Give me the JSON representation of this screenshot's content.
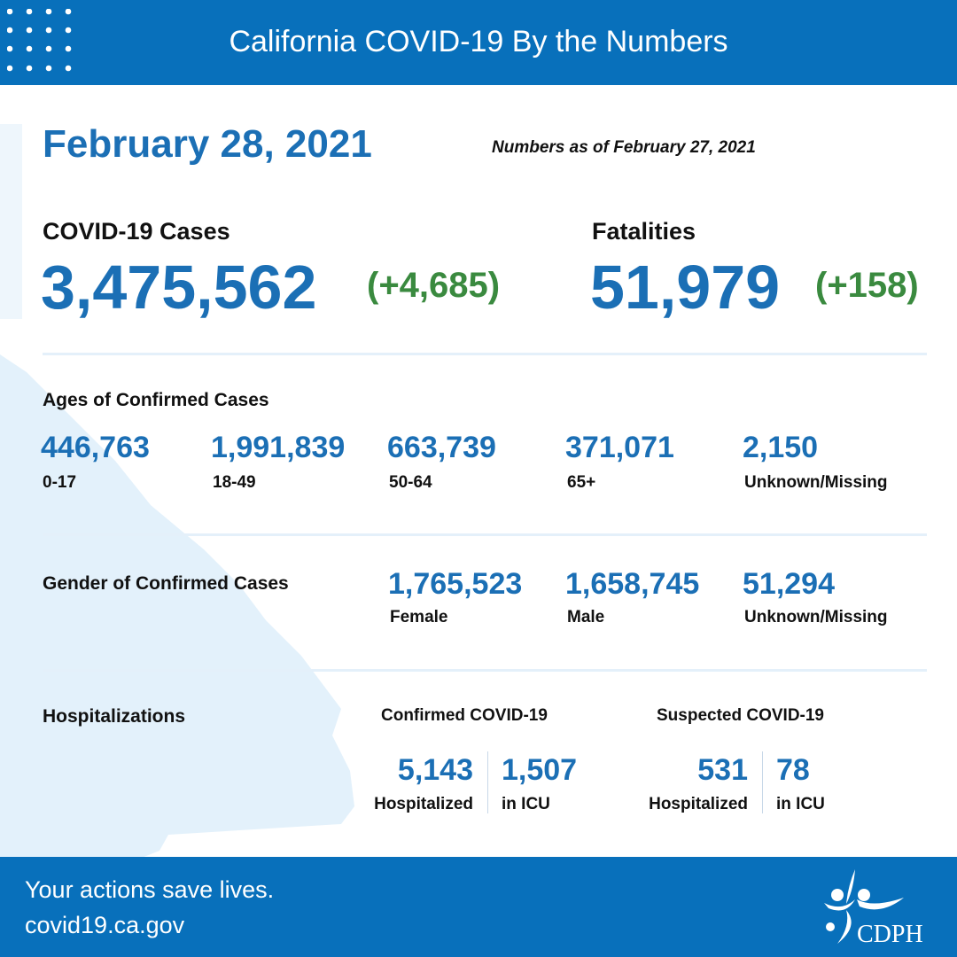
{
  "header": {
    "title": "California COVID-19 By the Numbers",
    "icon": "dot-grid-icon"
  },
  "date": "February 28, 2021",
  "as_of": "Numbers as of February 27, 2021",
  "cases": {
    "label": "COVID-19 Cases",
    "value": "3,475,562",
    "change": "(+4,685)"
  },
  "fatalities": {
    "label": "Fatalities",
    "value": "51,979",
    "change": "(+158)"
  },
  "ages": {
    "label": "Ages of Confirmed Cases",
    "items": [
      {
        "value": "446,763",
        "label": "0-17"
      },
      {
        "value": "1,991,839",
        "label": "18-49"
      },
      {
        "value": "663,739",
        "label": "50-64"
      },
      {
        "value": "371,071",
        "label": "65+"
      },
      {
        "value": "2,150",
        "label": "Unknown/Missing"
      }
    ]
  },
  "gender": {
    "label": "Gender of Confirmed Cases",
    "items": [
      {
        "value": "1,765,523",
        "label": "Female"
      },
      {
        "value": "1,658,745",
        "label": "Male"
      },
      {
        "value": "51,294",
        "label": "Unknown/Missing"
      }
    ]
  },
  "hosp": {
    "label": "Hospitalizations",
    "confirmed": {
      "label": "Confirmed COVID-19",
      "hosp_value": "5,143",
      "hosp_label": "Hospitalized",
      "icu_value": "1,507",
      "icu_label": "in ICU"
    },
    "suspected": {
      "label": "Suspected COVID-19",
      "hosp_value": "531",
      "hosp_label": "Hospitalized",
      "icu_value": "78",
      "icu_label": "in ICU"
    }
  },
  "footer": {
    "line1": "Your actions save lives.",
    "line2": "covid19.ca.gov",
    "logo": "CDPH"
  },
  "colors": {
    "brand_blue": "#0870bb",
    "number_blue": "#1b6fb5",
    "increase_green": "#3a8a3f",
    "map_fill": "#e3f1fb"
  }
}
